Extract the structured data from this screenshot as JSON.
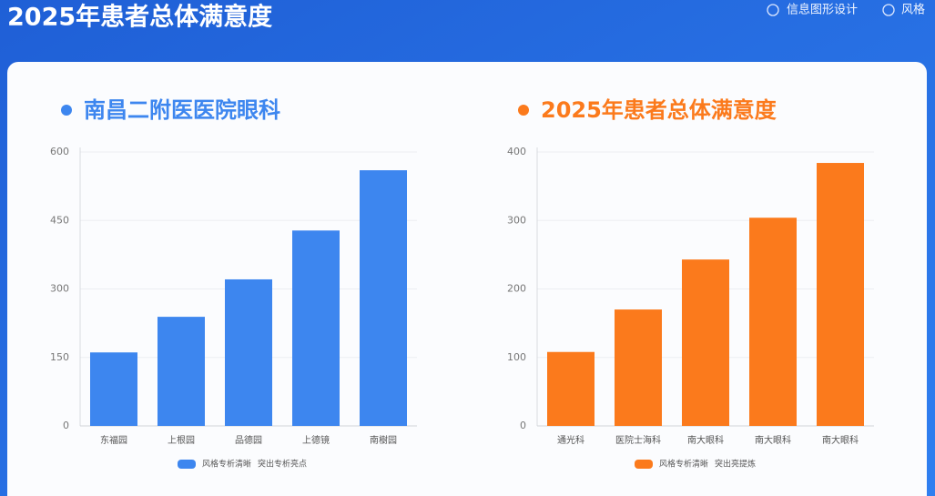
{
  "header": {
    "title": "2025年患者总体满意度",
    "links": [
      "信息图形设计",
      "风格"
    ]
  },
  "chart_data": [
    {
      "type": "bar",
      "title": "南昌二附医医院眼科",
      "color": "#3d86ef",
      "categories": [
        "东福园",
        "上根园",
        "品德园",
        "上德镜",
        "南樹园"
      ],
      "values": [
        161,
        239,
        321,
        428,
        560
      ],
      "ylim": [
        0,
        600
      ],
      "yticks": [
        0,
        150,
        300,
        450,
        600
      ],
      "grid": true,
      "legend": [
        "风格专析清晰",
        "突出专析亮点"
      ]
    },
    {
      "type": "bar",
      "title": "2025年患者总体满意度",
      "color": "#fb7a1c",
      "categories": [
        "通光科",
        "医院士海科",
        "南大眼科",
        "南大眼科",
        "南大眼科"
      ],
      "values": [
        108,
        170,
        243,
        304,
        384
      ],
      "ylim": [
        0,
        400
      ],
      "yticks": [
        0,
        100,
        200,
        300,
        400
      ],
      "grid": true,
      "legend": [
        "风格专析清晰",
        "突出亮提炼"
      ]
    }
  ]
}
